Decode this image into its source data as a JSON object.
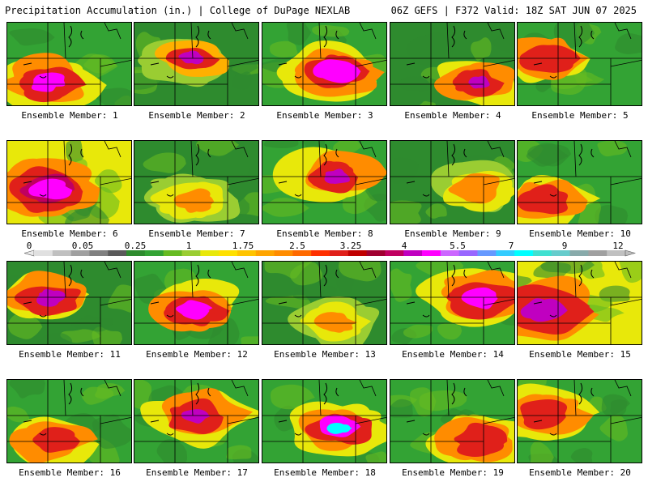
{
  "header": {
    "title_left": "Precipitation Accumulation (in.) | College of DuPage NEXLAB",
    "title_right": "06Z GEFS | F372 Valid: 18Z SAT JUN 07 2025"
  },
  "panel_label_prefix": "Ensemble Member: ",
  "members": [
    {
      "label": "Ensemble Member: 1",
      "base": "#33a334",
      "blobs": [
        [
          "#e8e80a",
          0.55
        ],
        [
          "#ff8c00",
          0.45
        ],
        [
          "#e0201a",
          0.32
        ],
        [
          "#ff00ff",
          0.18
        ]
      ]
    },
    {
      "label": "Ensemble Member: 2",
      "base": "#2e8b2e",
      "blobs": [
        [
          "#9acd32",
          0.5
        ],
        [
          "#ffb000",
          0.38
        ],
        [
          "#e0201a",
          0.25
        ],
        [
          "#c000c0",
          0.12
        ]
      ]
    },
    {
      "label": "Ensemble Member: 3",
      "base": "#33a334",
      "blobs": [
        [
          "#e8e80a",
          0.55
        ],
        [
          "#ff8c00",
          0.45
        ],
        [
          "#e0201a",
          0.32
        ],
        [
          "#ff00ff",
          0.22
        ]
      ]
    },
    {
      "label": "Ensemble Member: 4",
      "base": "#2e8b2e",
      "blobs": [
        [
          "#e8e80a",
          0.5
        ],
        [
          "#ff8c00",
          0.38
        ],
        [
          "#e0201a",
          0.25
        ],
        [
          "#c000c0",
          0.12
        ]
      ]
    },
    {
      "label": "Ensemble Member: 5",
      "base": "#33a334",
      "blobs": [
        [
          "#e8e80a",
          0.5
        ],
        [
          "#ff8c00",
          0.4
        ],
        [
          "#e0201a",
          0.28
        ]
      ]
    },
    {
      "label": "Ensemble Member: 6",
      "base": "#e8e80a",
      "blobs": [
        [
          "#ff8c00",
          0.55
        ],
        [
          "#e0201a",
          0.45
        ],
        [
          "#c00060",
          0.3
        ],
        [
          "#ff00ff",
          0.2
        ]
      ]
    },
    {
      "label": "Ensemble Member: 7",
      "base": "#2e8b2e",
      "blobs": [
        [
          "#9acd32",
          0.5
        ],
        [
          "#e8e80a",
          0.38
        ],
        [
          "#ff8c00",
          0.22
        ]
      ]
    },
    {
      "label": "Ensemble Member: 8",
      "base": "#33a334",
      "blobs": [
        [
          "#e8e80a",
          0.55
        ],
        [
          "#ff8c00",
          0.42
        ],
        [
          "#e0201a",
          0.28
        ],
        [
          "#c000c0",
          0.14
        ]
      ]
    },
    {
      "label": "Ensemble Member: 9",
      "base": "#2e8b2e",
      "blobs": [
        [
          "#9acd32",
          0.5
        ],
        [
          "#e8e80a",
          0.4
        ],
        [
          "#ff8c00",
          0.28
        ]
      ]
    },
    {
      "label": "Ensemble Member: 10",
      "base": "#33a334",
      "blobs": [
        [
          "#e8e80a",
          0.5
        ],
        [
          "#ff8c00",
          0.4
        ],
        [
          "#e0201a",
          0.28
        ]
      ]
    },
    {
      "label": "Ensemble Member: 11",
      "base": "#2e8b2e",
      "blobs": [
        [
          "#e8e80a",
          0.5
        ],
        [
          "#ff8c00",
          0.42
        ],
        [
          "#e0201a",
          0.32
        ],
        [
          "#c000c0",
          0.16
        ]
      ]
    },
    {
      "label": "Ensemble Member: 12",
      "base": "#33a334",
      "blobs": [
        [
          "#e8e80a",
          0.52
        ],
        [
          "#ff8c00",
          0.42
        ],
        [
          "#e0201a",
          0.3
        ],
        [
          "#ff00ff",
          0.18
        ]
      ]
    },
    {
      "label": "Ensemble Member: 13",
      "base": "#2e8b2e",
      "blobs": [
        [
          "#9acd32",
          0.5
        ],
        [
          "#e8e80a",
          0.35
        ],
        [
          "#ff8c00",
          0.2
        ]
      ]
    },
    {
      "label": "Ensemble Member: 14",
      "base": "#33a334",
      "blobs": [
        [
          "#e8e80a",
          0.58
        ],
        [
          "#ff8c00",
          0.48
        ],
        [
          "#e0201a",
          0.36
        ],
        [
          "#ff00ff",
          0.2
        ]
      ]
    },
    {
      "label": "Ensemble Member: 15",
      "base": "#e8e80a",
      "blobs": [
        [
          "#ff8c00",
          0.55
        ],
        [
          "#e0201a",
          0.42
        ],
        [
          "#c000c0",
          0.22
        ]
      ]
    },
    {
      "label": "Ensemble Member: 16",
      "base": "#33a334",
      "blobs": [
        [
          "#e8e80a",
          0.5
        ],
        [
          "#ff8c00",
          0.38
        ],
        [
          "#e0201a",
          0.26
        ]
      ]
    },
    {
      "label": "Ensemble Member: 17",
      "base": "#33a334",
      "blobs": [
        [
          "#e8e80a",
          0.55
        ],
        [
          "#ff8c00",
          0.45
        ],
        [
          "#e0201a",
          0.32
        ],
        [
          "#c000c0",
          0.14
        ]
      ]
    },
    {
      "label": "Ensemble Member: 18",
      "base": "#33a334",
      "blobs": [
        [
          "#e8e80a",
          0.55
        ],
        [
          "#ff8c00",
          0.45
        ],
        [
          "#e0201a",
          0.32
        ],
        [
          "#ff00ff",
          0.22
        ],
        [
          "#00ffff",
          0.12
        ]
      ]
    },
    {
      "label": "Ensemble Member: 19",
      "base": "#33a334",
      "blobs": [
        [
          "#e8e80a",
          0.55
        ],
        [
          "#ff8c00",
          0.42
        ],
        [
          "#e0201a",
          0.3
        ]
      ]
    },
    {
      "label": "Ensemble Member: 20",
      "base": "#33a334",
      "blobs": [
        [
          "#e8e80a",
          0.52
        ],
        [
          "#ff8c00",
          0.4
        ],
        [
          "#e0201a",
          0.28
        ]
      ]
    }
  ],
  "colorbar": {
    "tick_labels": [
      "0",
      "0.05",
      "0.25",
      "1",
      "1.75",
      "2.5",
      "3.25",
      "4",
      "5.5",
      "7",
      "9",
      "12"
    ],
    "colors": [
      "#e0e0e0",
      "#c0c0c0",
      "#a0a0a0",
      "#808080",
      "#5a5a5a",
      "#2e8b2e",
      "#33a334",
      "#66bb22",
      "#9acd32",
      "#e8e80a",
      "#ffe000",
      "#ffc400",
      "#ffa500",
      "#ff8c00",
      "#ff6a00",
      "#ff3000",
      "#e0201a",
      "#c00000",
      "#a00030",
      "#c00060",
      "#c000c0",
      "#ff00ff",
      "#cc66ff",
      "#9966ff",
      "#6699ff",
      "#33ccff",
      "#00ffff",
      "#40e0d0",
      "#66cccc",
      "#88aaaa",
      "#a0a0a0",
      "#c0c0c0"
    ]
  }
}
